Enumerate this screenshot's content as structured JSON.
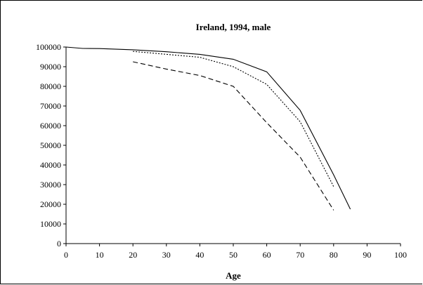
{
  "chart_data": {
    "type": "line",
    "title": "Ireland, 1994, male",
    "xlabel": "Age",
    "ylabel": "",
    "xlim": [
      0,
      100
    ],
    "ylim": [
      0,
      100000
    ],
    "x_ticks": [
      0,
      10,
      20,
      30,
      40,
      50,
      60,
      70,
      80,
      90,
      100
    ],
    "y_ticks": [
      0,
      10000,
      20000,
      30000,
      40000,
      50000,
      60000,
      70000,
      80000,
      90000,
      100000
    ],
    "grid": false,
    "legend": "none",
    "series": [
      {
        "style": "solid",
        "color": "#000000",
        "x": [
          0,
          5,
          10,
          20,
          30,
          40,
          50,
          60,
          70,
          80,
          85
        ],
        "y": [
          100000,
          99300,
          99200,
          98600,
          97600,
          96300,
          93800,
          87400,
          67800,
          35000,
          17500
        ]
      },
      {
        "style": "dotted",
        "color": "#000000",
        "x": [
          20,
          30,
          40,
          50,
          60,
          70,
          80
        ],
        "y": [
          97800,
          96300,
          94800,
          90000,
          81000,
          62000,
          29000
        ]
      },
      {
        "style": "dashed",
        "color": "#000000",
        "x": [
          20,
          30,
          40,
          50,
          60,
          70,
          80
        ],
        "y": [
          92500,
          88800,
          85500,
          80000,
          61500,
          44000,
          17000
        ]
      }
    ]
  }
}
